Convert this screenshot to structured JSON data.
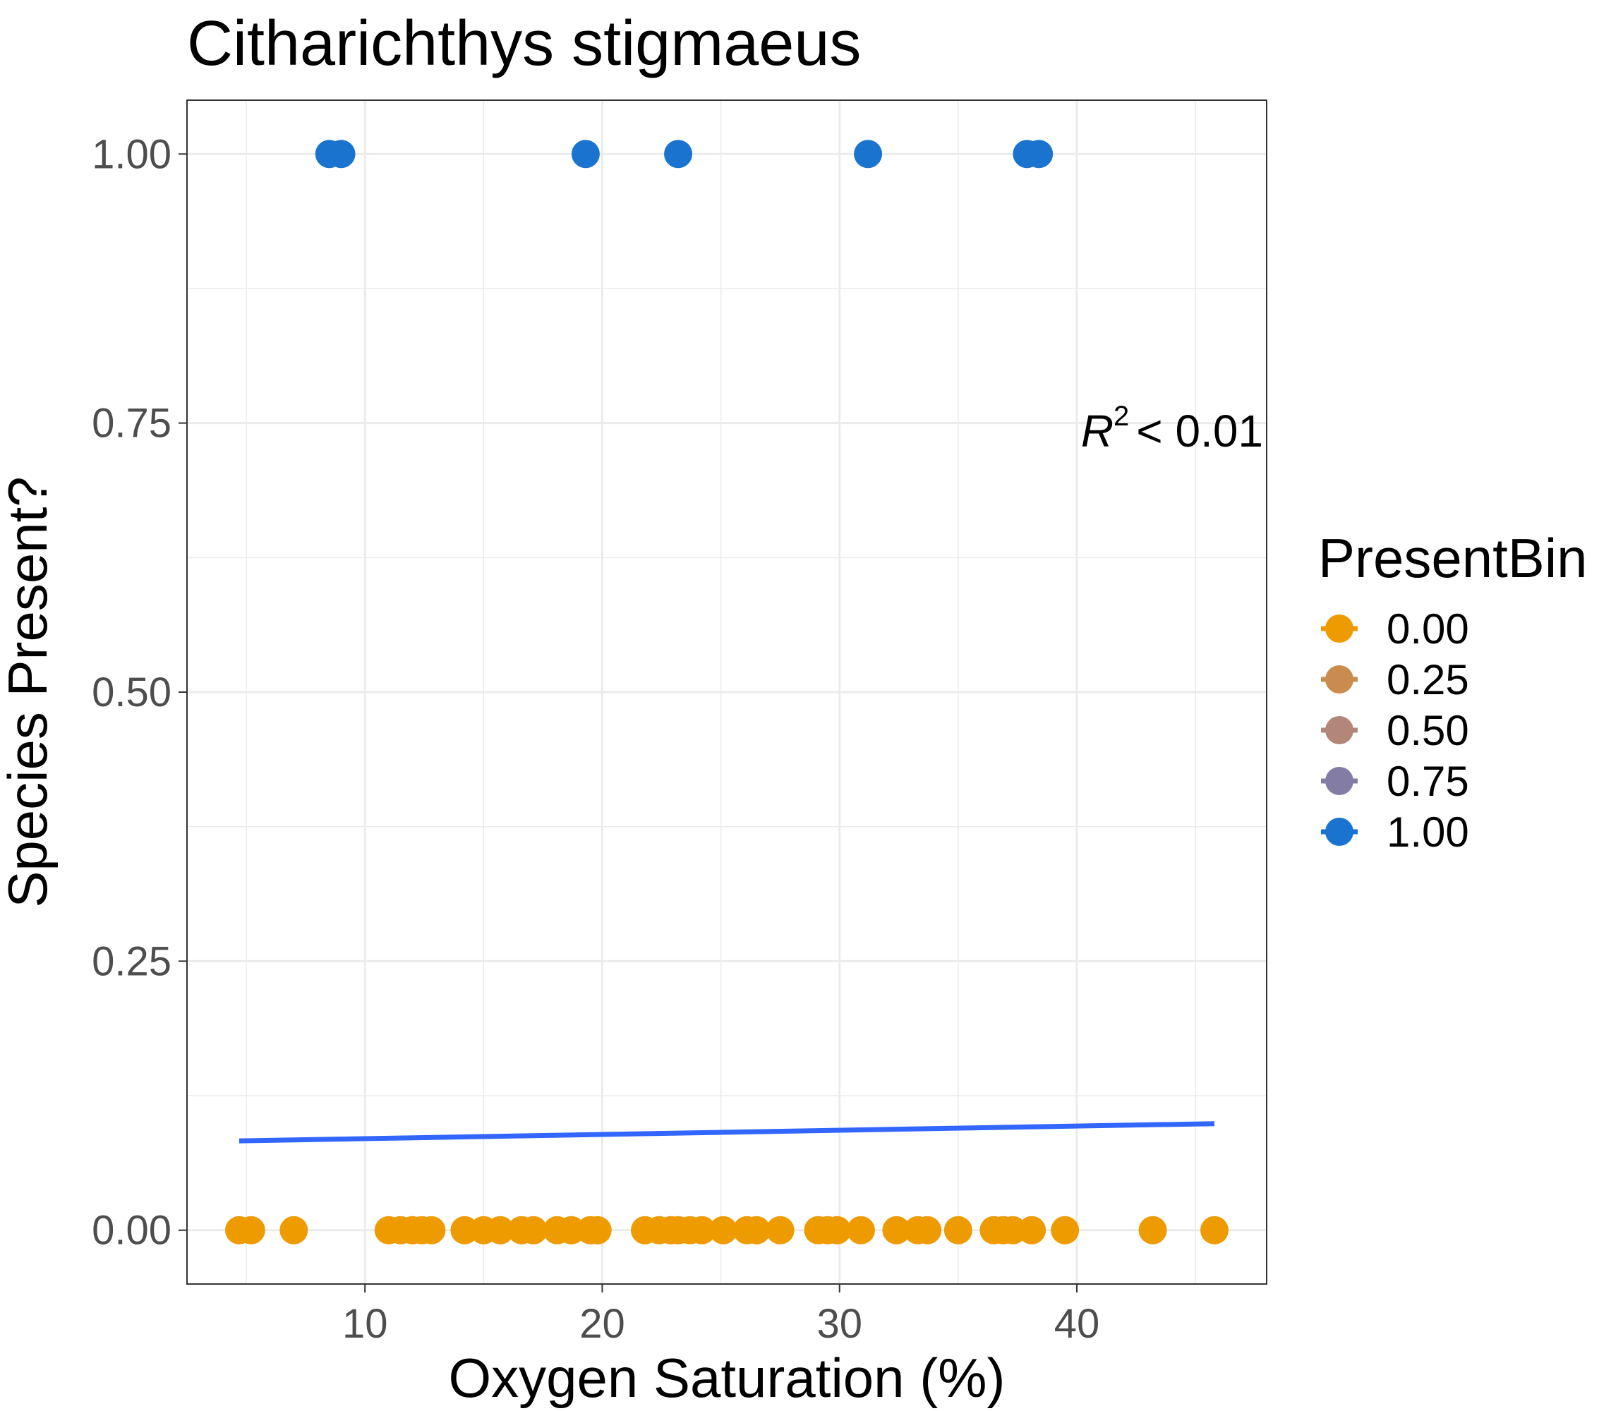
{
  "chart_data": {
    "type": "scatter",
    "title": "Citharichthys stigmaeus",
    "xlabel": "Oxygen Saturation (%)",
    "ylabel": "Species Present?",
    "xlim": [
      2.5,
      48.0
    ],
    "ylim": [
      -0.05,
      1.05
    ],
    "x_ticks": [
      10,
      20,
      30,
      40
    ],
    "x_tick_labels": [
      "10",
      "20",
      "30",
      "40"
    ],
    "y_ticks": [
      0,
      0.25,
      0.5,
      0.75,
      1.0
    ],
    "y_tick_labels": [
      "0.00",
      "0.25",
      "0.50",
      "0.75",
      "1.00"
    ],
    "grid": true,
    "legend": {
      "title": "PresentBin",
      "position": "right",
      "entries": [
        {
          "label": "0.00",
          "color": "#EE9B00"
        },
        {
          "label": "0.25",
          "color": "#CA8C4E"
        },
        {
          "label": "0.50",
          "color": "#B28779"
        },
        {
          "label": "0.75",
          "color": "#837DA6"
        },
        {
          "label": "1.00",
          "color": "#1A74CF"
        }
      ]
    },
    "annotation": {
      "r_symbol": "R",
      "superscript": "2",
      "rest": "< 0.01"
    },
    "series": [
      {
        "present_bin": 0,
        "color": "#EE9B00",
        "x": [
          4.7,
          5.2,
          7.0,
          11.0,
          11.5,
          12.0,
          12.4,
          12.8,
          14.2,
          15.0,
          15.7,
          16.6,
          17.1,
          18.1,
          18.7,
          19.5,
          19.8,
          21.8,
          22.4,
          22.9,
          23.2,
          23.7,
          24.2,
          25.1,
          26.1,
          26.5,
          27.5,
          29.1,
          29.5,
          29.9,
          30.9,
          32.4,
          33.3,
          33.7,
          35.0,
          36.5,
          36.9,
          37.3,
          38.1,
          39.5,
          43.2,
          45.8
        ],
        "y": [
          0,
          0,
          0,
          0,
          0,
          0,
          0,
          0,
          0,
          0,
          0,
          0,
          0,
          0,
          0,
          0,
          0,
          0,
          0,
          0,
          0,
          0,
          0,
          0,
          0,
          0,
          0,
          0,
          0,
          0,
          0,
          0,
          0,
          0,
          0,
          0,
          0,
          0,
          0,
          0,
          0,
          0
        ]
      },
      {
        "present_bin": 1,
        "color": "#1A74CF",
        "x": [
          8.5,
          9.0,
          19.3,
          23.2,
          31.2,
          37.9,
          38.4
        ],
        "y": [
          1,
          1,
          1,
          1,
          1,
          1,
          1
        ]
      }
    ],
    "fit_line": {
      "color": "#3366FF",
      "x": [
        4.7,
        45.8
      ],
      "y": [
        0.083,
        0.099
      ]
    }
  }
}
